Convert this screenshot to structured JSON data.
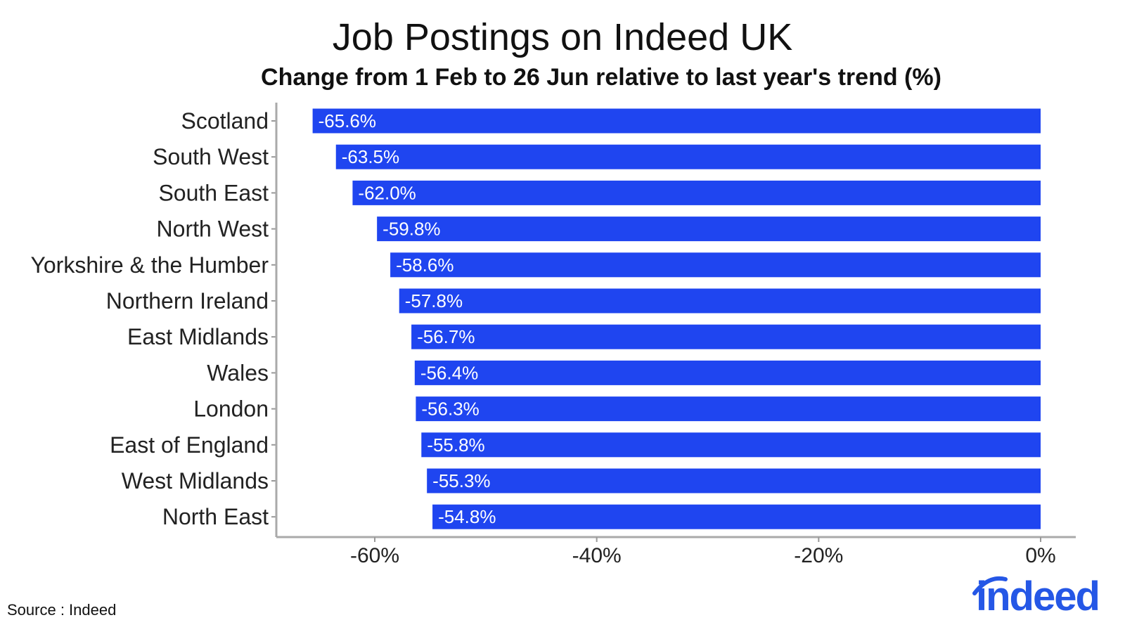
{
  "chart_data": {
    "type": "bar",
    "orientation": "horizontal",
    "title": "Job Postings on Indeed UK",
    "subtitle": "Change from 1 Feb to 26 Jun relative to last year's trend (%)",
    "categories": [
      "Scotland",
      "South West",
      "South East",
      "North West",
      "Yorkshire & the Humber",
      "Northern Ireland",
      "East Midlands",
      "Wales",
      "London",
      "East of England",
      "West Midlands",
      "North East"
    ],
    "values": [
      -65.6,
      -63.5,
      -62.0,
      -59.8,
      -58.6,
      -57.8,
      -56.7,
      -56.4,
      -56.3,
      -55.8,
      -55.3,
      -54.8
    ],
    "value_labels": [
      "-65.6%",
      "-63.5%",
      "-62.0%",
      "-59.8%",
      "-58.6%",
      "-57.8%",
      "-56.7%",
      "-56.4%",
      "-56.3%",
      "-55.8%",
      "-55.3%",
      "-54.8%"
    ],
    "xticks": [
      -60,
      -40,
      -20,
      0
    ],
    "xtick_labels": [
      "-60%",
      "-40%",
      "-20%",
      "0%"
    ],
    "xlim": [
      -69,
      3
    ],
    "xlabel": "",
    "ylabel": "",
    "grid": false,
    "bar_color": "#1f45f0"
  },
  "source": "Source : Indeed",
  "logo": {
    "text": "indeed",
    "color": "#2557e6"
  }
}
